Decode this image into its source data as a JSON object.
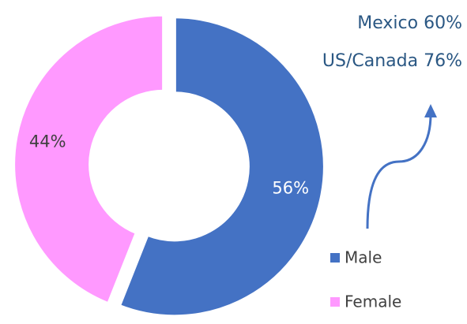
{
  "chart_data": {
    "type": "donut",
    "categories": [
      "Male",
      "Female"
    ],
    "values": [
      56,
      44
    ],
    "value_labels": [
      "56%",
      "44%"
    ],
    "colors": [
      "#4472c4",
      "#ff99ff"
    ],
    "annotations": [
      "Mexico 60%",
      "US/Canada 76%"
    ],
    "legend": "lower right"
  }
}
